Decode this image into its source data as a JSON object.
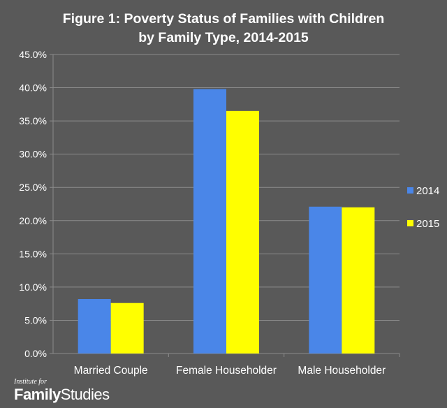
{
  "chart_data": {
    "type": "bar",
    "title_line1": "Figure 1: Poverty Status of Families with Children",
    "title_line2": "by Family Type, 2014-2015",
    "categories": [
      "Married Couple",
      "Female Householder",
      "Male Householder"
    ],
    "series": [
      {
        "name": "2014",
        "values": [
          8.2,
          39.8,
          22.1
        ],
        "color": "#4a86e8"
      },
      {
        "name": "2015",
        "values": [
          7.6,
          36.5,
          22.0
        ],
        "color": "#ffff00"
      }
    ],
    "ylim": [
      0,
      45
    ],
    "ytick_step": 5,
    "ytick_labels": [
      "0.0%",
      "5.0%",
      "10.0%",
      "15.0%",
      "20.0%",
      "25.0%",
      "30.0%",
      "35.0%",
      "40.0%",
      "45.0%"
    ],
    "grid": true,
    "legend": "right",
    "colors": {
      "background": "#595959",
      "axis": "#8c8c8c",
      "text": "#ffffff"
    }
  },
  "branding": {
    "line1": "Institute for",
    "word1": "Family",
    "word2": "Studies"
  }
}
